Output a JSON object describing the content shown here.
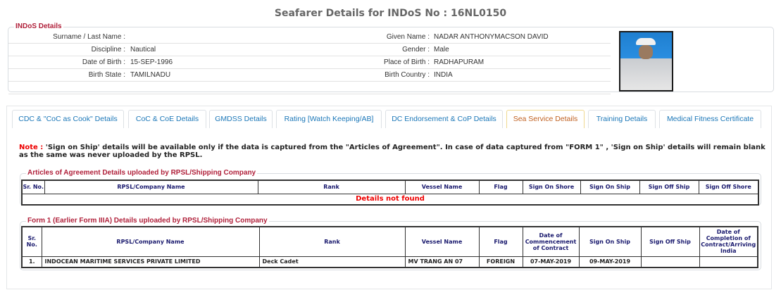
{
  "page": {
    "title": "Seafarer Details for INDoS No : 16NL0150"
  },
  "indos": {
    "legend": "INDoS Details",
    "left": [
      {
        "label": "Surname / Last Name :",
        "value": ""
      },
      {
        "label": "Discipline :",
        "value": "Nautical"
      },
      {
        "label": "Date of Birth :",
        "value": "15-SEP-1996"
      },
      {
        "label": "Birth State :",
        "value": "TAMILNADU"
      }
    ],
    "right": [
      {
        "label": "Given Name :",
        "value": "NADAR ANTHONYMACSON DAVID"
      },
      {
        "label": "Gender :",
        "value": "Male"
      },
      {
        "label": "Place of Birth :",
        "value": "RADHAPURAM"
      },
      {
        "label": "Birth Country :",
        "value": "INDIA"
      }
    ]
  },
  "tabs": [
    {
      "label": "CDC & \"CoC as Cook\" Details"
    },
    {
      "label": "CoC & CoE Details"
    },
    {
      "label": "GMDSS Details"
    },
    {
      "label": "Rating [Watch Keeping/AB]"
    },
    {
      "label": "DC Endorsement & CoP Details"
    },
    {
      "label": "Sea Service Details",
      "active": true
    },
    {
      "label": "Training Details"
    },
    {
      "label": "Medical Fitness Certificate"
    }
  ],
  "note": {
    "prefix": "Note :",
    "text": " 'Sign on Ship' details will be available only if the data is captured from the \"Articles of Agreement\". In case of data captured from \"FORM 1\" , 'Sign on Ship' details will remain blank as the same was never uploaded by the RPSL."
  },
  "articles": {
    "legend": "Articles of Agreement Details uploaded by RPSL/Shipping Company",
    "headers": [
      "Sr. No.",
      "RPSL/Company Name",
      "Rank",
      "Vessel Name",
      "Flag",
      "Sign On Shore",
      "Sign On Ship",
      "Sign Off Ship",
      "Sign Off Shore"
    ],
    "empty": "Details not found"
  },
  "form1": {
    "legend": "Form 1 (Earlier Form IIIA) Details uploaded by RPSL/Shipping Company",
    "headers": [
      "Sr. No.",
      "RPSL/Company Name",
      "Rank",
      "Vessel Name",
      "Flag",
      "Date of Commencement of Contract",
      "Sign On Ship",
      "Sign Off Ship",
      "Date of Completion of Contract/Arriving India"
    ],
    "rows": [
      [
        "1.",
        "INDOCEAN MARITIME SERVICES PRIVATE LIMITED",
        "Deck Cadet",
        "MV TRANG AN 07",
        "FOREIGN",
        "07-MAY-2019",
        "09-MAY-2019",
        "",
        ""
      ]
    ]
  }
}
